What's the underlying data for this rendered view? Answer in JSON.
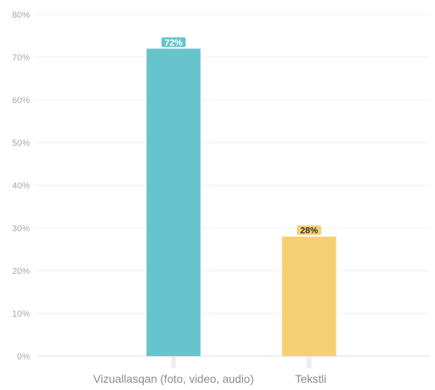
{
  "chart_data": {
    "type": "bar",
    "title": "",
    "xlabel": "",
    "ylabel": "",
    "categories": [
      "Vizuallasqan (foto, video, audio)",
      "Tekstli"
    ],
    "values": [
      72,
      28
    ],
    "data_labels": [
      "72%",
      "28%"
    ],
    "colors": [
      "#67c4cc",
      "#f5cf72"
    ],
    "label_text_colors": [
      "#ffffff",
      "#333333"
    ],
    "ylim": [
      0,
      80
    ],
    "y_ticks": [
      0,
      10,
      20,
      30,
      40,
      50,
      60,
      70,
      80
    ],
    "y_tick_labels": [
      "0%",
      "10%",
      "20%",
      "30%",
      "40%",
      "50%",
      "60%",
      "70%",
      "80%"
    ],
    "grid": true,
    "legend": "none"
  }
}
